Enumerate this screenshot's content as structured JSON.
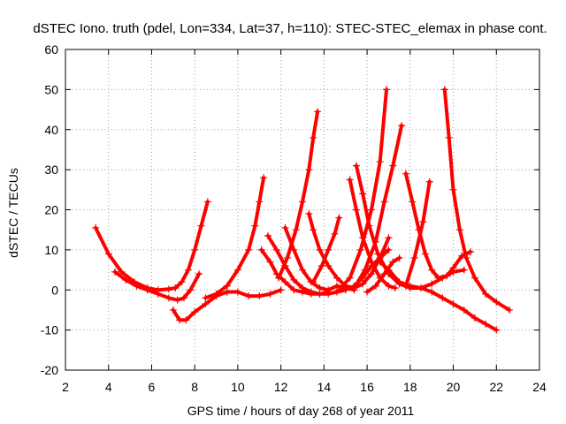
{
  "chart_data": {
    "type": "line",
    "title": "dSTEC Iono. truth (pdel, Lon=334, Lat=37, h=110): STEC-STEC_elemax in phase cont.",
    "xlabel": "GPS time / hours of day 268 of year 2011",
    "ylabel": "dSTEC  / TECUs",
    "xlim": [
      2,
      24
    ],
    "ylim": [
      -20,
      60
    ],
    "xticks": [
      "2",
      "4",
      "6",
      "8",
      "10",
      "12",
      "14",
      "16",
      "18",
      "20",
      "22",
      "24"
    ],
    "yticks": [
      "-20",
      "-10",
      "0",
      "10",
      "20",
      "30",
      "40",
      "50",
      "60"
    ],
    "grid": true,
    "color": "#ff0000",
    "series": [
      {
        "x": [
          3.4,
          4.0,
          4.6,
          5.2,
          5.8,
          6.3,
          6.8,
          7.1,
          7.4,
          7.7,
          8.0,
          8.3,
          8.6
        ],
        "y": [
          15.5,
          9,
          4.5,
          2,
          0.5,
          0,
          0.2,
          0.5,
          2,
          5,
          10,
          16,
          22
        ]
      },
      {
        "x": [
          4.3,
          4.8,
          5.3,
          5.8,
          6.3,
          6.8,
          7.2,
          7.5,
          7.8,
          8.2
        ],
        "y": [
          4.5,
          2.5,
          1,
          0,
          -1,
          -2,
          -2.5,
          -2,
          0,
          4
        ]
      },
      {
        "x": [
          7.0,
          7.3,
          7.6,
          8.0,
          8.5,
          9.0,
          9.5,
          10.0,
          10.5,
          11.0,
          11.5,
          12.0
        ],
        "y": [
          -5,
          -7.5,
          -7.5,
          -5.5,
          -3.5,
          -1.5,
          -0.5,
          -0.5,
          -1.5,
          -1.5,
          -1,
          0
        ]
      },
      {
        "x": [
          8.5,
          9.0,
          9.5,
          10.0,
          10.5,
          10.8,
          11.0,
          11.2
        ],
        "y": [
          -2,
          -1,
          1,
          5,
          10,
          16,
          22,
          28
        ]
      },
      {
        "x": [
          11.1,
          11.5,
          11.8,
          12.2,
          12.6,
          13.0,
          13.4,
          13.8,
          14.2
        ],
        "y": [
          10,
          7,
          4,
          2,
          0,
          -0.5,
          -1,
          -1,
          -0.5
        ]
      },
      {
        "x": [
          11.4,
          11.8,
          12.2,
          12.6,
          13.0,
          13.4,
          13.8,
          14.2,
          14.6,
          15.0,
          15.4,
          15.8,
          16.2,
          16.6,
          17.0
        ],
        "y": [
          13.5,
          10,
          6,
          2.5,
          0.5,
          -0.5,
          -1,
          -1,
          -0.5,
          0,
          1,
          3,
          6,
          8,
          10
        ]
      },
      {
        "x": [
          12.2,
          12.6,
          13.0,
          13.4,
          13.8,
          14.2,
          14.6,
          15.0,
          15.4
        ],
        "y": [
          15.5,
          10,
          5,
          2,
          0.5,
          0,
          1,
          0.5,
          0
        ]
      },
      {
        "x": [
          11.9,
          12.3,
          12.7,
          13.0,
          13.3,
          13.5,
          13.7
        ],
        "y": [
          3,
          8,
          15,
          22,
          30,
          38,
          44.5
        ]
      },
      {
        "x": [
          13.3,
          13.5,
          13.8,
          14.2,
          14.6,
          15.0,
          15.4,
          15.8,
          16.2,
          16.6,
          17.0
        ],
        "y": [
          19,
          15,
          10,
          6,
          3,
          1,
          0.5,
          1.5,
          4,
          8,
          13
        ]
      },
      {
        "x": [
          13.5,
          13.9,
          14.2,
          14.5,
          14.7
        ],
        "y": [
          2,
          6,
          10,
          14,
          18
        ]
      },
      {
        "x": [
          15.2,
          15.5,
          15.8,
          16.2,
          16.6,
          17.0,
          17.3
        ],
        "y": [
          27.5,
          20,
          13,
          7,
          3,
          1,
          0.5
        ]
      },
      {
        "x": [
          15.5,
          15.8,
          16.1,
          16.5,
          17.0,
          17.5,
          18.0,
          18.5,
          19.0,
          19.5,
          20.0,
          20.5
        ],
        "y": [
          31,
          24,
          16,
          9,
          4,
          1.5,
          0.5,
          0.5,
          1.5,
          3,
          4.5,
          5
        ]
      },
      {
        "x": [
          14.7,
          15.2,
          15.7,
          16.2,
          16.6,
          16.9
        ],
        "y": [
          0,
          3,
          10,
          20,
          32,
          50
        ]
      },
      {
        "x": [
          15.4,
          15.9,
          16.4,
          16.8,
          17.2,
          17.6
        ],
        "y": [
          0.5,
          5,
          12,
          22,
          31,
          41
        ]
      },
      {
        "x": [
          16.0,
          16.4,
          16.8,
          17.2,
          17.5
        ],
        "y": [
          -0.5,
          1,
          4,
          7,
          8
        ]
      },
      {
        "x": [
          16.6,
          17.0,
          17.5,
          18.0,
          18.5,
          19.0,
          19.5,
          20.0,
          20.5,
          21.0,
          21.5,
          22.0
        ],
        "y": [
          7,
          5,
          2,
          1,
          0.5,
          -0.5,
          -2,
          -3.5,
          -5,
          -7,
          -8.5,
          -10
        ]
      },
      {
        "x": [
          17.8,
          18.1,
          18.4,
          18.7,
          19.0,
          19.3,
          19.7,
          20.0,
          20.4,
          20.8
        ],
        "y": [
          29,
          22,
          15,
          9,
          5,
          3,
          3.5,
          5.5,
          8.5,
          9.5
        ]
      },
      {
        "x": [
          17.8,
          18.2,
          18.6,
          18.9
        ],
        "y": [
          1,
          8,
          17,
          27
        ]
      },
      {
        "x": [
          19.6,
          19.8,
          20.0,
          20.3,
          20.6,
          21.0,
          21.5,
          22.0,
          22.6
        ],
        "y": [
          50,
          38,
          25,
          15,
          8,
          3,
          -1,
          -3,
          -5
        ]
      }
    ]
  }
}
